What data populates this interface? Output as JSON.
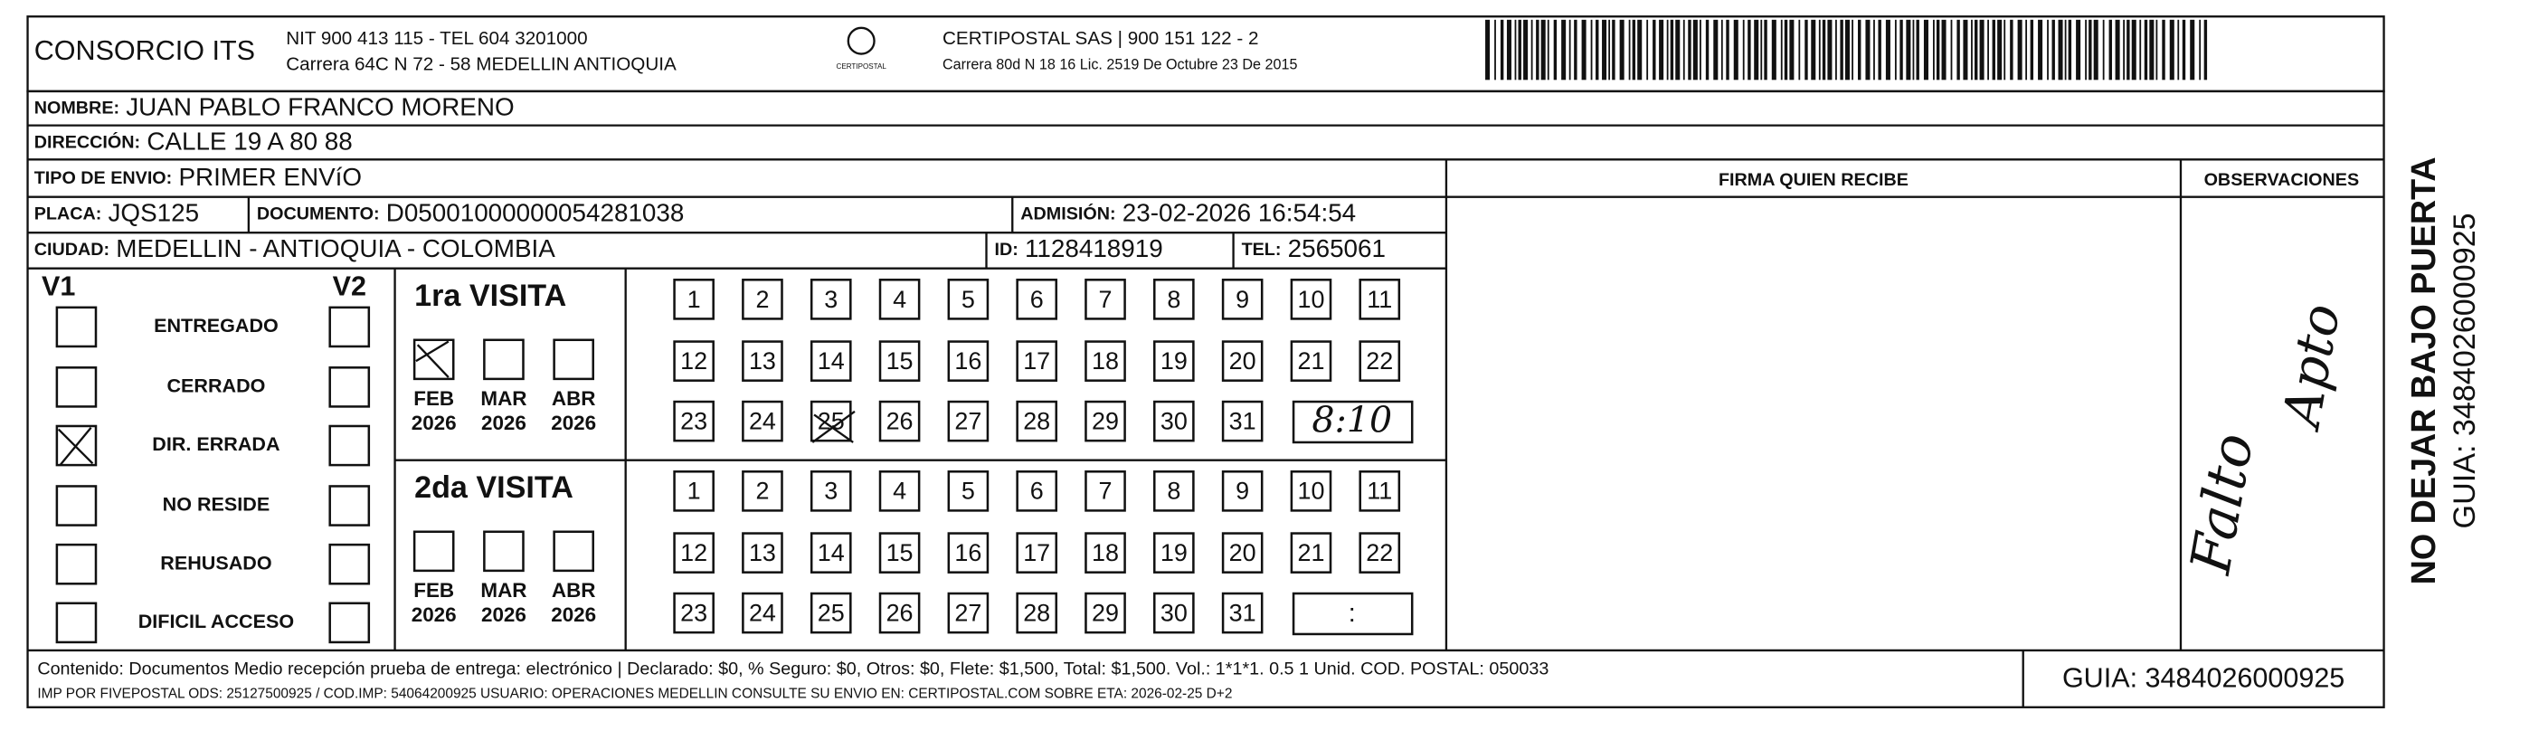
{
  "header": {
    "company": "CONSORCIO ITS",
    "nit": "NIT 900 413 115 - TEL 604 3201000",
    "address": "Carrera 64C N 72 - 58 MEDELLIN ANTIOQUIA",
    "logo": "CERTIPOSTAL",
    "carrier": "CERTIPOSTAL SAS | 900 151 122 - 2",
    "carrier_address": "Carrera 80d N 18 16  Lic. 2519 De Octubre 23 De 2015"
  },
  "fields": [
    {
      "label": "NOMBRE:",
      "value": "JUAN PABLO FRANCO MORENO"
    },
    {
      "label": "DIRECCIÓN:",
      "value": "CALLE 19 A   80 88"
    },
    {
      "label": "TIPO DE ENVIO:",
      "value": "PRIMER ENVíO"
    },
    {
      "label": "PLACA:",
      "value": "JQS125"
    },
    {
      "label": "DOCUMENTO:",
      "value": "D05001000000054281038"
    },
    {
      "label": "ADMISIÓN:",
      "value": "23-02-2026 16:54:54"
    },
    {
      "label": "CIUDAD:",
      "value": "MEDELLIN - ANTIOQUIA - COLOMBIA"
    },
    {
      "label": "ID:",
      "value": "1128418919"
    },
    {
      "label": "TEL:",
      "value": "2565061"
    }
  ],
  "signature": {
    "title": "FIRMA QUIEN RECIBE"
  },
  "observations": {
    "title": "OBSERVACIONES",
    "notes": [
      "Falto",
      "Apto"
    ]
  },
  "status": {
    "v1": "V1",
    "v2": "V2",
    "reasons": [
      "ENTREGADO",
      "CERRADO",
      "DIR. ERRADA",
      "NO RESIDE",
      "REHUSADO",
      "DIFICIL ACCESO"
    ]
  },
  "visits": [
    {
      "title": "1ra VISITA",
      "months": [
        {
          "month": "FEB",
          "year": "2026"
        },
        {
          "month": "MAR",
          "year": "2026"
        },
        {
          "month": "ABR",
          "year": "2026"
        }
      ],
      "days": [
        1,
        2,
        3,
        4,
        5,
        6,
        7,
        8,
        9,
        10,
        11,
        12,
        13,
        14,
        15,
        16,
        17,
        18,
        19,
        20,
        21,
        22,
        23,
        24,
        25,
        26,
        27,
        28,
        29,
        30,
        31
      ],
      "time": "8:10"
    },
    {
      "title": "2da VISITA",
      "months": [
        {
          "month": "FEB",
          "year": "2026"
        },
        {
          "month": "MAR",
          "year": "2026"
        },
        {
          "month": "ABR",
          "year": "2026"
        }
      ],
      "days": [
        1,
        2,
        3,
        4,
        5,
        6,
        7,
        8,
        9,
        10,
        11,
        12,
        13,
        14,
        15,
        16,
        17,
        18,
        19,
        20,
        21,
        22,
        23,
        24,
        25,
        26,
        27,
        28,
        29,
        30,
        31
      ],
      "time": ":"
    }
  ],
  "footer": {
    "content": "Contenido: Documentos Medio recepción prueba de entrega: electrónico | Declarado: $0, % Seguro: $0, Otros: $0, Flete: $1,500, Total: $1,500. Vol.: 1*1*1. 0.5  1 Unid. COD. POSTAL: 050033",
    "imp": "IMP POR FIVEPOSTAL ODS: 25127500925 / COD.IMP: 54064200925 USUARIO: OPERACIONES MEDELLIN CONSULTE SU ENVIO EN: CERTIPOSTAL.COM SOBRE ETA: 2026-02-25 D+2",
    "guia": "GUIA: 3484026000925"
  },
  "side": {
    "warning": "NO DEJAR BAJO PUERTA",
    "guia": "GUIA: 3484026000925"
  }
}
